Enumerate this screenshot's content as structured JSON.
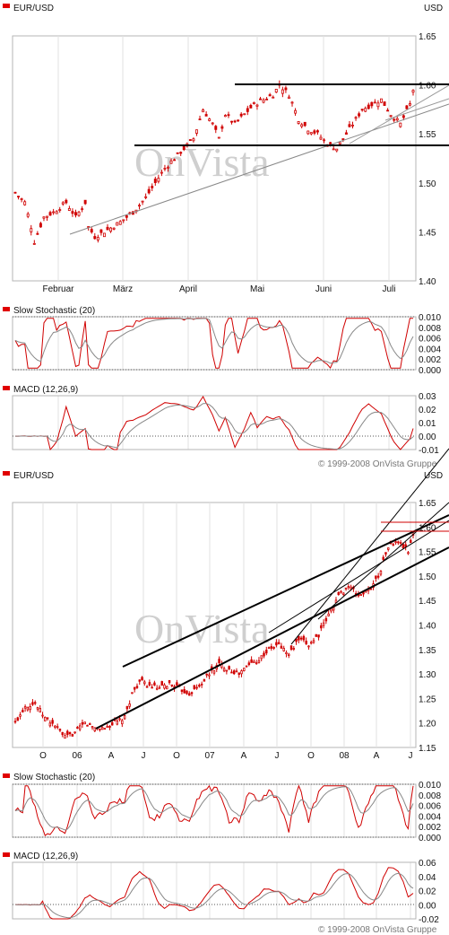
{
  "chart_data": [
    {
      "type": "line",
      "name_label": "EUR/USD",
      "currency": "USD",
      "ylim": [
        1.4,
        1.65
      ],
      "yticks": [
        "1.65",
        "1.60",
        "1.55",
        "1.50",
        "1.45",
        "1.40"
      ],
      "xticks": [
        "Februar",
        "März",
        "April",
        "Mai",
        "Juni",
        "Juli"
      ],
      "watermark": "OnVista",
      "x_steps": 125,
      "series_anchors": [
        [
          0,
          1.49
        ],
        [
          3,
          1.48
        ],
        [
          5,
          1.455
        ],
        [
          6,
          1.44
        ],
        [
          9,
          1.465
        ],
        [
          12,
          1.47
        ],
        [
          14,
          1.475
        ],
        [
          16,
          1.48
        ],
        [
          19,
          1.465
        ],
        [
          22,
          1.48
        ],
        [
          23,
          1.455
        ],
        [
          25,
          1.445
        ],
        [
          29,
          1.452
        ],
        [
          33,
          1.46
        ],
        [
          37,
          1.47
        ],
        [
          41,
          1.485
        ],
        [
          44,
          1.5
        ],
        [
          47,
          1.515
        ],
        [
          50,
          1.525
        ],
        [
          53,
          1.535
        ],
        [
          56,
          1.545
        ],
        [
          59,
          1.575
        ],
        [
          62,
          1.56
        ],
        [
          64,
          1.545
        ],
        [
          66,
          1.57
        ],
        [
          69,
          1.56
        ],
        [
          72,
          1.57
        ],
        [
          75,
          1.58
        ],
        [
          78,
          1.585
        ],
        [
          81,
          1.59
        ],
        [
          83,
          1.6
        ],
        [
          86,
          1.59
        ],
        [
          89,
          1.565
        ],
        [
          92,
          1.555
        ],
        [
          95,
          1.55
        ],
        [
          98,
          1.54
        ],
        [
          101,
          1.535
        ],
        [
          103,
          1.545
        ],
        [
          106,
          1.56
        ],
        [
          109,
          1.575
        ],
        [
          112,
          1.58
        ],
        [
          115,
          1.585
        ],
        [
          118,
          1.57
        ],
        [
          121,
          1.56
        ],
        [
          124,
          1.58
        ],
        [
          125,
          1.595
        ]
      ],
      "indicators": [
        {
          "label": "Slow Stochastic (20)",
          "ylim": [
            0.0,
            0.01
          ],
          "yticks": [
            "0.010",
            "0.008",
            "0.006",
            "0.004",
            "0.002",
            "0.000"
          ]
        },
        {
          "label": "MACD (12,26,9)",
          "ylim": [
            -0.01,
            0.03
          ],
          "yticks": [
            "0.03",
            "0.02",
            "0.01",
            "0.00",
            "-0.01"
          ]
        }
      ],
      "copyright": "© 1999-2008 OnVista Gruppe"
    },
    {
      "type": "line",
      "name_label": "EUR/USD",
      "currency": "USD",
      "ylim": [
        1.15,
        1.65
      ],
      "yticks": [
        "1.65",
        "1.60",
        "1.55",
        "1.50",
        "1.45",
        "1.40",
        "1.35",
        "1.30",
        "1.25",
        "1.20",
        "1.15"
      ],
      "xticks": [
        "O",
        "06",
        "A",
        "J",
        "O",
        "07",
        "A",
        "J",
        "O",
        "08",
        "A",
        "J"
      ],
      "watermark": "OnVista",
      "x_steps": 160,
      "series_anchors": [
        [
          0,
          1.2
        ],
        [
          4,
          1.235
        ],
        [
          8,
          1.24
        ],
        [
          12,
          1.21
        ],
        [
          16,
          1.195
        ],
        [
          20,
          1.17
        ],
        [
          24,
          1.18
        ],
        [
          28,
          1.2
        ],
        [
          32,
          1.19
        ],
        [
          36,
          1.19
        ],
        [
          40,
          1.2
        ],
        [
          44,
          1.21
        ],
        [
          47,
          1.26
        ],
        [
          50,
          1.285
        ],
        [
          54,
          1.275
        ],
        [
          58,
          1.27
        ],
        [
          62,
          1.28
        ],
        [
          66,
          1.27
        ],
        [
          70,
          1.26
        ],
        [
          74,
          1.275
        ],
        [
          78,
          1.3
        ],
        [
          82,
          1.32
        ],
        [
          86,
          1.31
        ],
        [
          90,
          1.3
        ],
        [
          94,
          1.32
        ],
        [
          98,
          1.33
        ],
        [
          102,
          1.35
        ],
        [
          106,
          1.36
        ],
        [
          110,
          1.34
        ],
        [
          114,
          1.37
        ],
        [
          118,
          1.36
        ],
        [
          122,
          1.38
        ],
        [
          126,
          1.42
        ],
        [
          130,
          1.46
        ],
        [
          134,
          1.48
        ],
        [
          138,
          1.46
        ],
        [
          142,
          1.47
        ],
        [
          146,
          1.5
        ],
        [
          150,
          1.56
        ],
        [
          154,
          1.57
        ],
        [
          158,
          1.55
        ],
        [
          160,
          1.59
        ]
      ],
      "indicators": [
        {
          "label": "Slow Stochastic (20)",
          "ylim": [
            0.0,
            0.01
          ],
          "yticks": [
            "0.010",
            "0.008",
            "0.006",
            "0.004",
            "0.002",
            "0.000"
          ]
        },
        {
          "label": "MACD (12,26,9)",
          "ylim": [
            -0.02,
            0.06
          ],
          "yticks": [
            "0.06",
            "0.04",
            "0.02",
            "0.00",
            "-0.02"
          ]
        }
      ],
      "copyright": "© 1999-2008 OnVista Gruppe"
    }
  ]
}
